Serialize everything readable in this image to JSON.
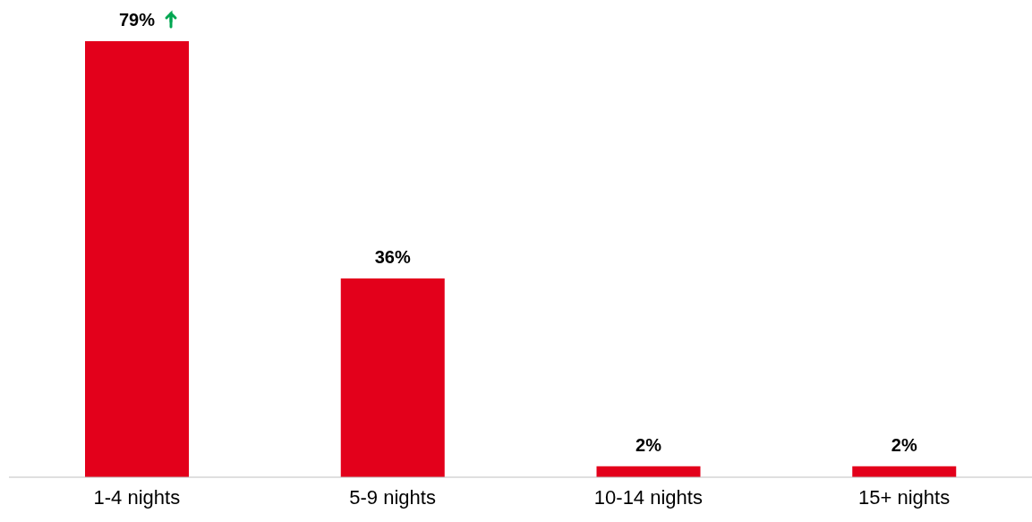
{
  "chart_data": {
    "type": "bar",
    "categories": [
      "1-4 nights",
      "5-9 nights",
      "10-14 nights",
      "15+ nights"
    ],
    "values": [
      79,
      36,
      2,
      2
    ],
    "color": "#e3001b",
    "value_labels": [
      "79%",
      "36%",
      "2%",
      "2%"
    ]
  }
}
